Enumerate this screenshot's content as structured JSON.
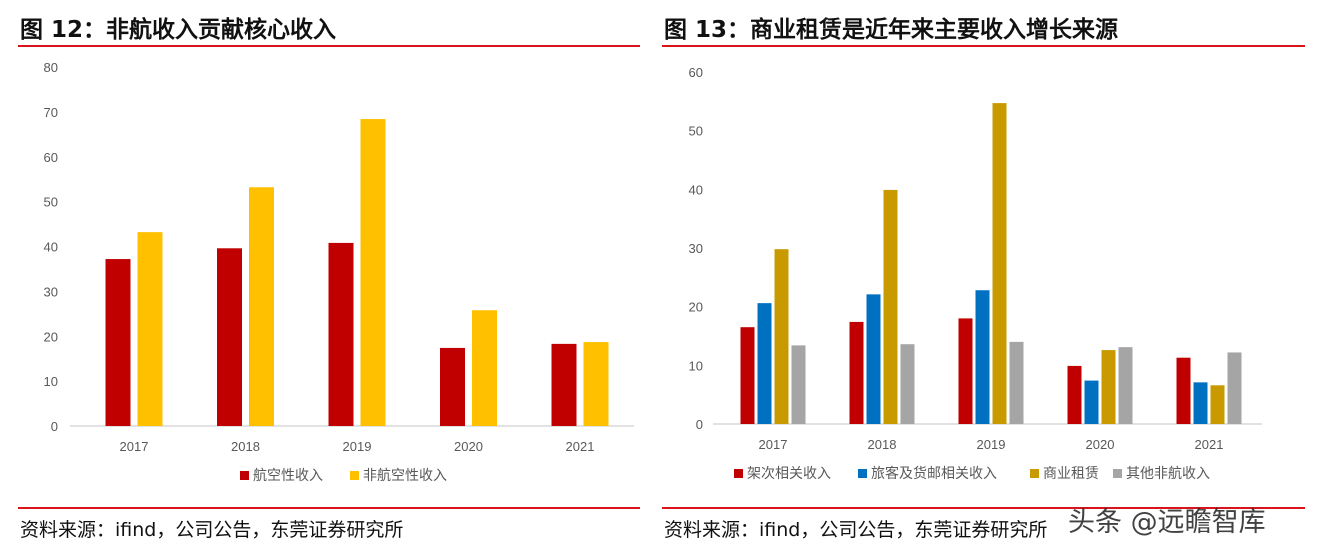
{
  "watermark": "头条 @远瞻智库",
  "chart_data": [
    {
      "type": "bar",
      "figure_label": "图 12：非航收入贡献核心收入",
      "source": "资料来源：ifind，公司公告，东莞证券研究所",
      "categories": [
        "2017",
        "2018",
        "2019",
        "2020",
        "2021"
      ],
      "ylim": [
        0,
        80
      ],
      "yticks": [
        0,
        10,
        20,
        30,
        40,
        50,
        60,
        70,
        80
      ],
      "grid": false,
      "legend": "bottom",
      "series": [
        {
          "name": "航空性收入",
          "color": "#c00000",
          "values": [
            37.2,
            39.6,
            40.8,
            17.4,
            18.3
          ]
        },
        {
          "name": "非航空性收入",
          "color": "#ffc000",
          "values": [
            43.2,
            53.2,
            68.4,
            25.8,
            18.7
          ]
        }
      ]
    },
    {
      "type": "bar",
      "figure_label": "图 13：商业租赁是近年来主要收入增长来源",
      "source": "资料来源：ifind，公司公告，东莞证券研究所",
      "categories": [
        "2017",
        "2018",
        "2019",
        "2020",
        "2021"
      ],
      "ylim": [
        0,
        60
      ],
      "yticks": [
        0,
        10,
        20,
        30,
        40,
        50,
        60
      ],
      "grid": false,
      "legend": "bottom",
      "series": [
        {
          "name": "架次相关收入",
          "color": "#c00000",
          "values": [
            16.5,
            17.4,
            18.0,
            9.9,
            11.3
          ]
        },
        {
          "name": "旅客及货邮相关收入",
          "color": "#0070c0",
          "values": [
            20.6,
            22.1,
            22.8,
            7.4,
            7.1
          ]
        },
        {
          "name": "商业租赁",
          "color": "#c99a00",
          "values": [
            29.8,
            39.9,
            54.7,
            12.6,
            6.6
          ]
        },
        {
          "name": "其他非航收入",
          "color": "#a5a5a5",
          "values": [
            13.4,
            13.6,
            14.0,
            13.1,
            12.2
          ]
        }
      ]
    }
  ]
}
